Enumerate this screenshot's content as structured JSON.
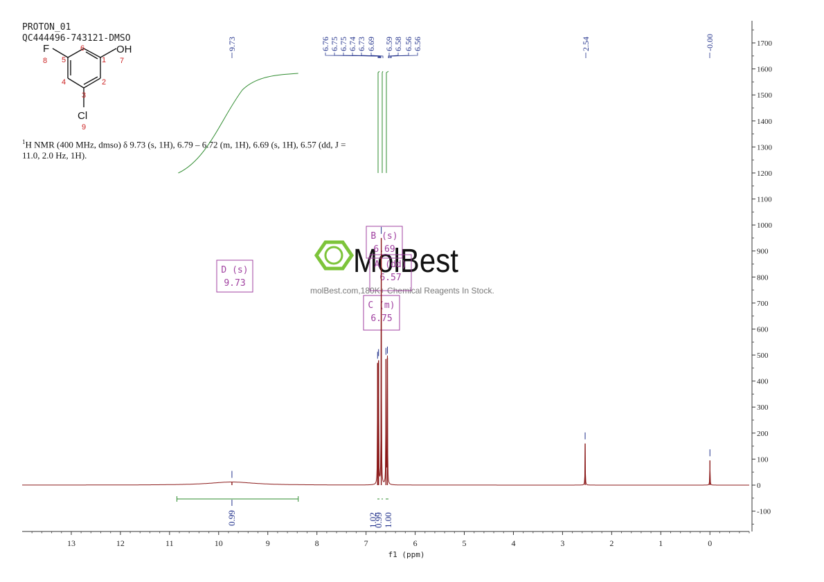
{
  "header": {
    "experiment": "PROTON_01",
    "sample": "QC444496-743121-DMSO"
  },
  "structure": {
    "atoms": {
      "F": "F",
      "OH": "OH",
      "Cl": "Cl"
    },
    "numbers": [
      "1",
      "2",
      "3",
      "4",
      "5",
      "6",
      "7",
      "8",
      "9"
    ]
  },
  "description": {
    "line1": "H NMR (400 MHz, dmso) δ 9.73 (s, 1H), 6.79 – 6.72 (m, 1H), 6.69 (s, 1H), 6.57 (dd, J =",
    "sup": "1",
    "line2": "11.0, 2.0 Hz, 1H)."
  },
  "watermark": {
    "brand": "MolBest",
    "tagline": "molBest.com,180K+ Chemical Reagents In Stock."
  },
  "colors": {
    "spectrum": "#8b1a1a",
    "peak_label": "#1f2f8a",
    "integral": "#2e8b2e",
    "multiplet_box": "#a040a0",
    "logo": "#7dc43a"
  },
  "chart_data": {
    "type": "line",
    "xlabel": "f1 (ppm)",
    "x_ticks": [
      13,
      12,
      11,
      10,
      9,
      8,
      7,
      6,
      5,
      4,
      3,
      2,
      1,
      0
    ],
    "xlim": [
      14.0,
      -0.8
    ],
    "ylim": [
      -170,
      1800
    ],
    "y_ticks": [
      -100,
      0,
      100,
      200,
      300,
      400,
      500,
      600,
      700,
      800,
      900,
      1000,
      1100,
      1200,
      1300,
      1400,
      1500,
      1600,
      1700
    ],
    "peak_labels": [
      "9.73",
      "6.76",
      "6.75",
      "6.75",
      "6.74",
      "6.73",
      "6.69",
      "6.59",
      "6.58",
      "6.56",
      "6.56",
      "2.54",
      "-0.00"
    ],
    "peaks": [
      {
        "ppm": 9.73,
        "height": 12,
        "width": 0.55
      },
      {
        "ppm": 6.765,
        "height": 470,
        "width": 0.004
      },
      {
        "ppm": 6.745,
        "height": 480,
        "width": 0.004
      },
      {
        "ppm": 6.69,
        "height": 950,
        "width": 0.004
      },
      {
        "ppm": 6.595,
        "height": 485,
        "width": 0.004
      },
      {
        "ppm": 6.565,
        "height": 490,
        "width": 0.004
      },
      {
        "ppm": 2.54,
        "height": 160,
        "width": 0.004
      },
      {
        "ppm": 0.0,
        "height": 95,
        "width": 0.004
      }
    ],
    "integrals": [
      {
        "from": 10.85,
        "to": 8.38,
        "value": "0.99"
      },
      {
        "from": 6.79,
        "to": 6.72,
        "value": "1.02"
      },
      {
        "from": 6.71,
        "to": 6.66,
        "value": "0.99"
      },
      {
        "from": 6.62,
        "to": 6.53,
        "value": "1.00"
      }
    ],
    "multiplets": [
      {
        "letter": "D (s)",
        "shift": "9.73"
      },
      {
        "letter": "B (s)",
        "shift": "6.69"
      },
      {
        "letter": "A (dd)",
        "shift": "6.57"
      },
      {
        "letter": "C (m)",
        "shift": "6.75"
      }
    ]
  }
}
